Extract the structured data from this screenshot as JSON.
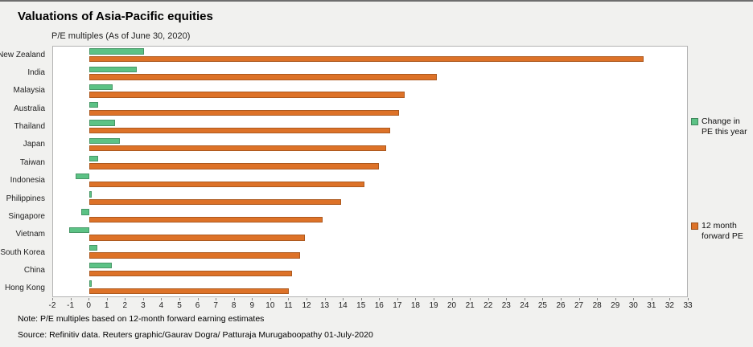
{
  "title": "Valuations of Asia-Pacific equities",
  "subtitle": "P/E multiples (As of June 30, 2020)",
  "note": "Note: P/E multiples based on 12-month forward earning estimates",
  "source": "Source: Refinitiv data.  Reuters graphic/Gaurav Dogra/ Patturaja Murugaboopathy 01-July-2020",
  "colors": {
    "change_pe": "#5cc285",
    "forward_pe": "#dd7228",
    "background": "#f1f1ef",
    "plot_background": "#ffffff"
  },
  "legend": [
    {
      "label": "Change in PE this year",
      "color": "#5cc285"
    },
    {
      "label": "12 month forward PE",
      "color": "#dd7228"
    }
  ],
  "chart_data": {
    "type": "bar",
    "orientation": "horizontal",
    "title": "Valuations of Asia-Pacific equities",
    "subtitle": "P/E multiples (As of June 30, 2020)",
    "categories": [
      "New Zealand",
      "India",
      "Malaysia",
      "Australia",
      "Thailand",
      "Japan",
      "Taiwan",
      "Indonesia",
      "Philippines",
      "Singapore",
      "Vietnam",
      "South Korea",
      "China",
      "Hong Kong"
    ],
    "series": [
      {
        "name": "Change in PE this year",
        "color": "#5cc285",
        "values": [
          3.0,
          2.6,
          1.3,
          0.5,
          1.4,
          1.7,
          0.5,
          -0.75,
          0.15,
          -0.45,
          -1.1,
          0.45,
          1.25,
          0.15
        ]
      },
      {
        "name": "12 month forward PE",
        "color": "#dd7228",
        "values": [
          30.6,
          19.2,
          17.4,
          17.1,
          16.6,
          16.4,
          16.0,
          15.2,
          13.9,
          12.9,
          11.9,
          11.65,
          11.2,
          11.0
        ]
      }
    ],
    "xlabel": "",
    "ylabel": "",
    "xlim": [
      -2,
      33
    ],
    "xticks": [
      -2,
      -1,
      0,
      1,
      2,
      3,
      4,
      5,
      6,
      7,
      8,
      9,
      10,
      11,
      12,
      13,
      14,
      15,
      16,
      17,
      18,
      19,
      20,
      21,
      22,
      23,
      24,
      25,
      26,
      27,
      28,
      29,
      30,
      31,
      32,
      33
    ],
    "grid": false,
    "legend_position": "right"
  }
}
